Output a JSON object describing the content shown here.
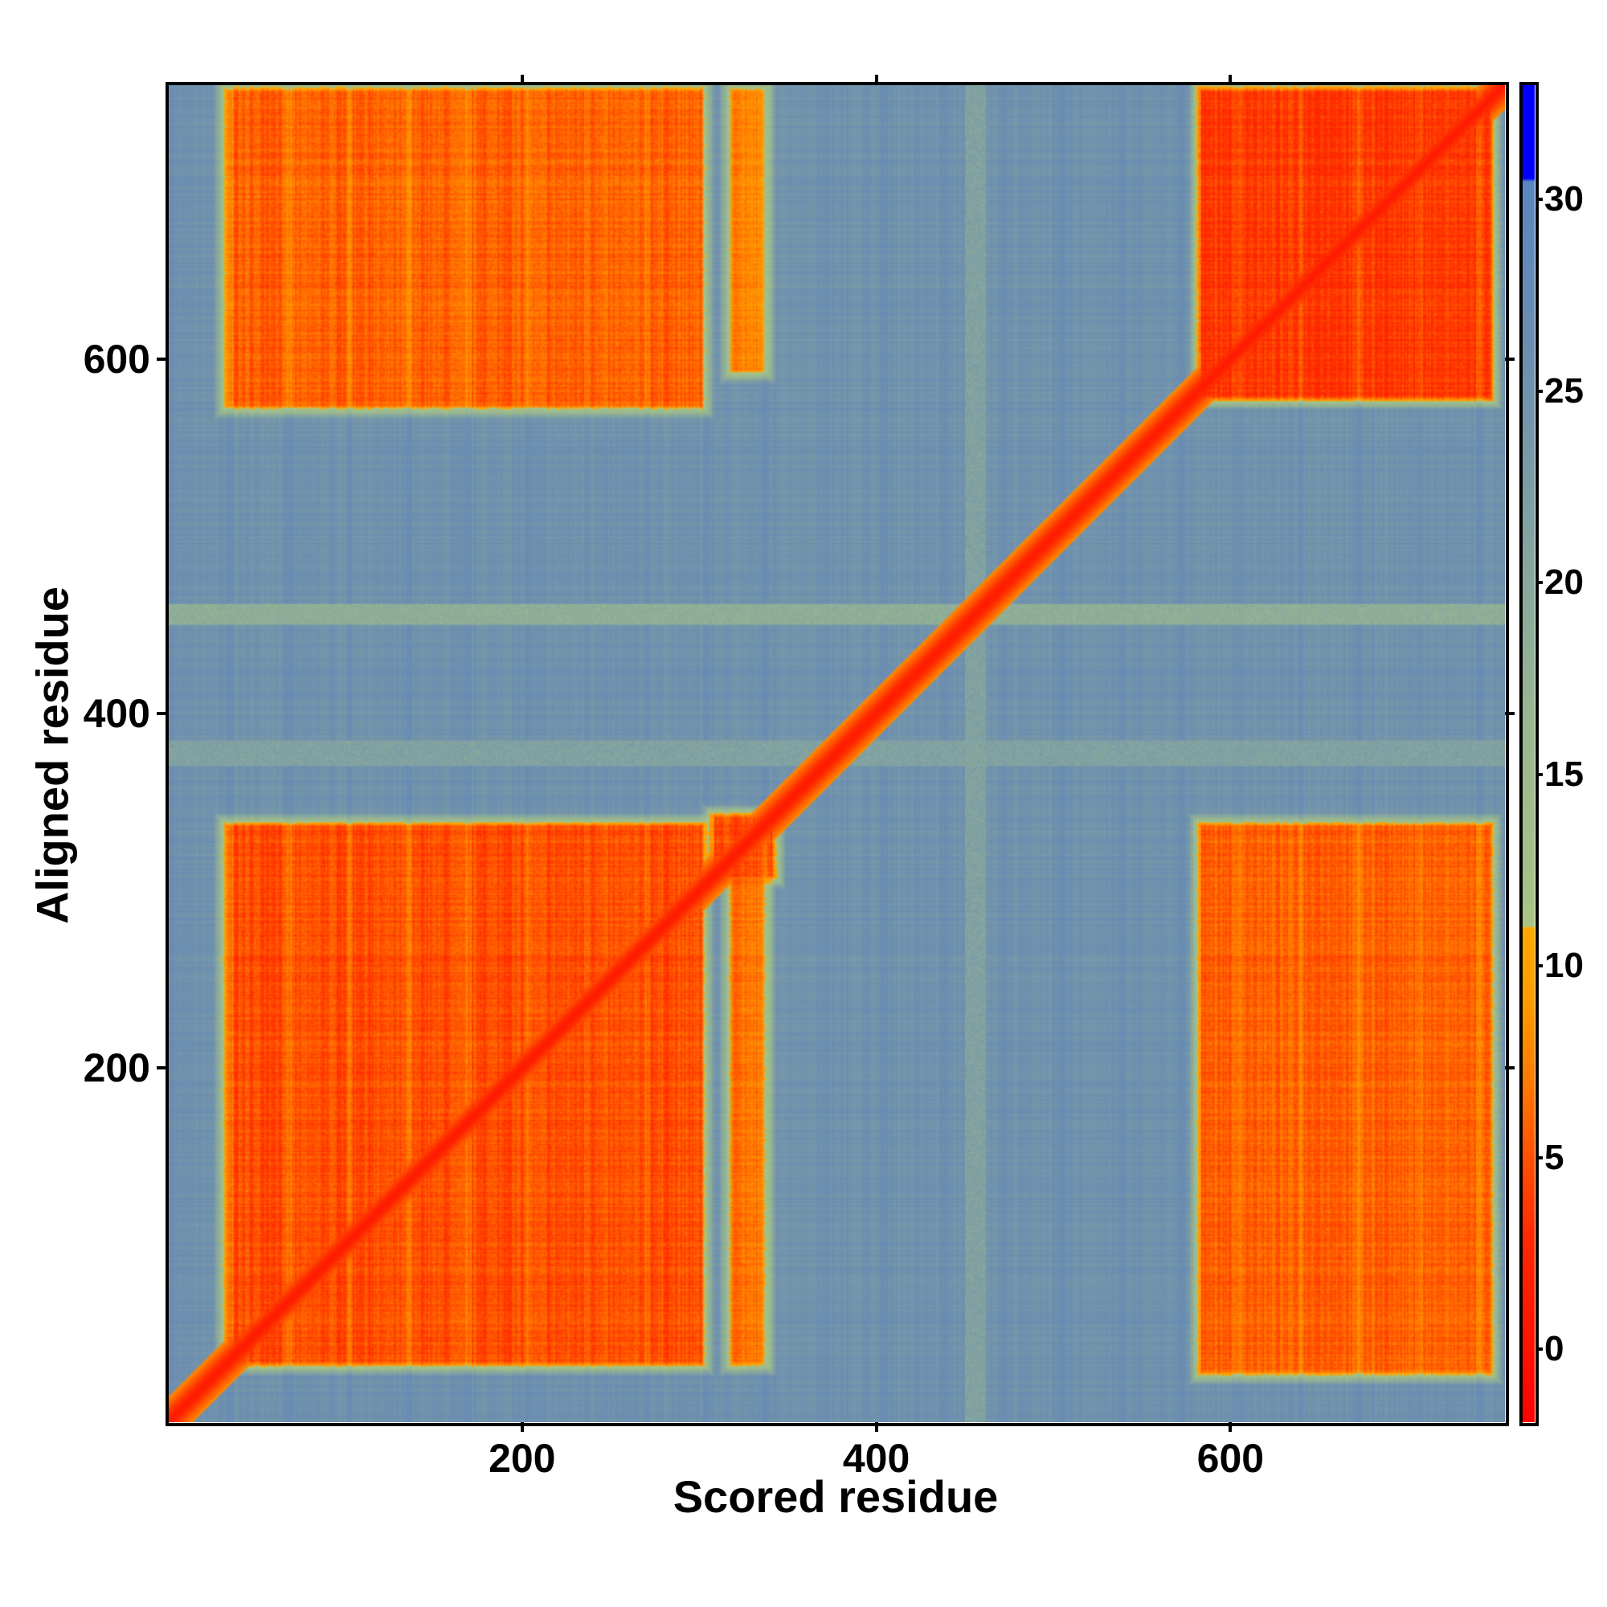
{
  "chart_data": {
    "type": "heatmap",
    "title": "",
    "xlabel": "Scored residue",
    "ylabel": "Aligned residue",
    "xlim": [
      0,
      755
    ],
    "ylim": [
      0,
      755
    ],
    "xticks": [
      200,
      400,
      600
    ],
    "yticks": [
      200,
      400,
      600
    ],
    "colorbar": {
      "range": [
        -1.9,
        33
      ],
      "ticks": [
        0,
        5,
        10,
        15,
        20,
        25,
        30
      ],
      "stops": [
        {
          "v": -2,
          "color": "#ff0000"
        },
        {
          "v": 3,
          "color": "#ff2a00"
        },
        {
          "v": 5,
          "color": "#ff5000"
        },
        {
          "v": 7,
          "color": "#ff7a00"
        },
        {
          "v": 9,
          "color": "#ff9a00"
        },
        {
          "v": 11,
          "color": "#ffaa00"
        },
        {
          "v": 11.01,
          "color": "#a9c484"
        },
        {
          "v": 16,
          "color": "#9ab890"
        },
        {
          "v": 21,
          "color": "#84a4a0"
        },
        {
          "v": 26,
          "color": "#6c8eb0"
        },
        {
          "v": 30.5,
          "color": "#5a86c0"
        },
        {
          "v": 30.51,
          "color": "#0000ff"
        },
        {
          "v": 33,
          "color": "#0000ff"
        }
      ]
    },
    "background_pae": 25,
    "diagonal_pae": 1,
    "blocks": [
      {
        "x": [
          30,
          305
        ],
        "y": [
          30,
          340
        ],
        "pae": 4
      },
      {
        "x": [
          315,
          340
        ],
        "y": [
          30,
          310
        ],
        "pae": 6
      },
      {
        "x": [
          305,
          345
        ],
        "y": [
          305,
          345
        ],
        "pae": 4
      },
      {
        "x": [
          580,
          750
        ],
        "y": [
          575,
          755
        ],
        "pae": 3
      },
      {
        "x": [
          30,
          305
        ],
        "y": [
          570,
          755
        ],
        "pae": 5
      },
      {
        "x": [
          315,
          340
        ],
        "y": [
          590,
          755
        ],
        "pae": 7
      },
      {
        "x": [
          580,
          750
        ],
        "y": [
          25,
          340
        ],
        "pae": 5
      }
    ],
    "bands": [
      {
        "axis": "y",
        "range": [
          450,
          462
        ],
        "pae": 17
      },
      {
        "axis": "y",
        "range": [
          370,
          385
        ],
        "pae": 20
      },
      {
        "axis": "x",
        "range": [
          450,
          462
        ],
        "pae": 20
      }
    ]
  }
}
